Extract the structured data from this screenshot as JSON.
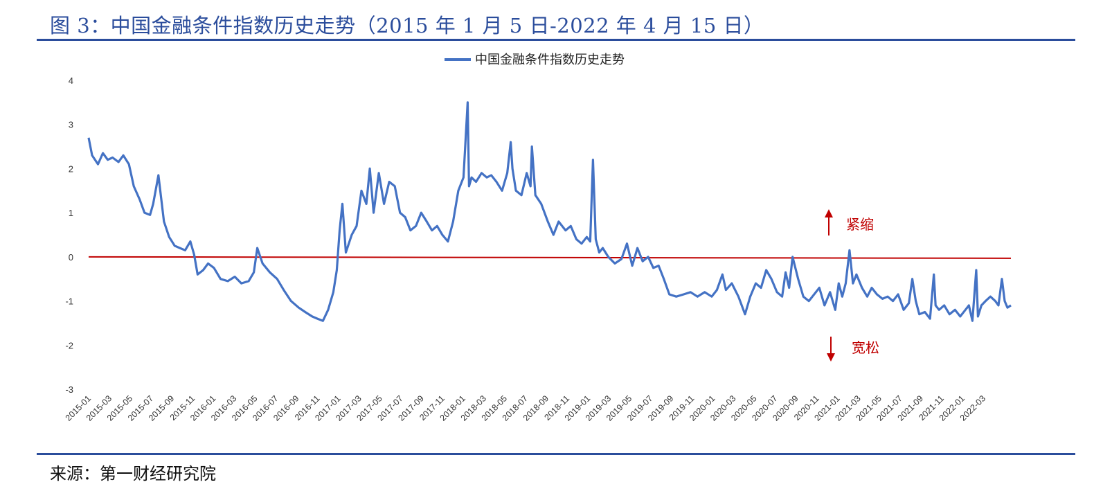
{
  "figure": {
    "title": "图 3：中国金融条件指数历史走势（2015 年 1 月 5 日-2022 年 4 月 15 日）",
    "source": "来源：第一财经研究院"
  },
  "colors": {
    "series": "#4472c4",
    "zero_line": "#c00000",
    "annotation": "#c00000",
    "rule": "#2b4d9c",
    "title": "#2b4d9c"
  },
  "chart_data": {
    "type": "line",
    "title": "",
    "xlabel": "",
    "ylabel": "",
    "ylim": [
      -3,
      4
    ],
    "yticks": [
      "4",
      "3",
      "2",
      "1",
      "0",
      "-1",
      "-2",
      "-3"
    ],
    "grid": false,
    "legend_position": "top-center",
    "x_tick_labels": [
      "2015-01",
      "2015-03",
      "2015-05",
      "2015-07",
      "2015-09",
      "2015-11",
      "2016-01",
      "2016-03",
      "2016-05",
      "2016-07",
      "2016-09",
      "2016-11",
      "2017-01",
      "2017-03",
      "2017-05",
      "2017-07",
      "2017-09",
      "2017-11",
      "2018-01",
      "2018-03",
      "2018-05",
      "2018-07",
      "2018-09",
      "2018-11",
      "2019-01",
      "2019-03",
      "2019-05",
      "2019-07",
      "2019-09",
      "2019-11",
      "2020-01",
      "2020-03",
      "2020-05",
      "2020-07",
      "2020-09",
      "2020-11",
      "2021-01",
      "2021-03",
      "2021-05",
      "2021-07",
      "2021-09",
      "2021-11",
      "2022-01",
      "2022-03"
    ],
    "series": [
      {
        "name": "中国金融条件指数历史走势",
        "x": [
          "2015-01-05",
          "2015-01-15",
          "2015-02-01",
          "2015-02-15",
          "2015-03-01",
          "2015-03-15",
          "2015-04-01",
          "2015-04-15",
          "2015-05-01",
          "2015-05-15",
          "2015-06-01",
          "2015-06-15",
          "2015-07-01",
          "2015-07-10",
          "2015-07-25",
          "2015-08-10",
          "2015-08-25",
          "2015-09-10",
          "2015-09-25",
          "2015-10-10",
          "2015-10-25",
          "2015-11-05",
          "2015-11-15",
          "2015-12-01",
          "2015-12-15",
          "2016-01-01",
          "2016-01-20",
          "2016-02-10",
          "2016-03-01",
          "2016-03-20",
          "2016-04-10",
          "2016-04-25",
          "2016-05-05",
          "2016-05-20",
          "2016-06-10",
          "2016-07-01",
          "2016-07-20",
          "2016-08-10",
          "2016-09-01",
          "2016-09-20",
          "2016-10-10",
          "2016-10-25",
          "2016-11-10",
          "2016-11-25",
          "2016-12-10",
          "2016-12-20",
          "2016-12-28",
          "2017-01-05",
          "2017-01-15",
          "2017-02-01",
          "2017-02-15",
          "2017-03-01",
          "2017-03-15",
          "2017-03-25",
          "2017-04-05",
          "2017-04-20",
          "2017-05-05",
          "2017-05-20",
          "2017-06-05",
          "2017-06-20",
          "2017-07-05",
          "2017-07-20",
          "2017-08-05",
          "2017-08-20",
          "2017-09-05",
          "2017-09-20",
          "2017-10-05",
          "2017-10-20",
          "2017-11-05",
          "2017-11-20",
          "2017-12-05",
          "2017-12-20",
          "2018-01-01",
          "2018-01-05",
          "2018-01-12",
          "2018-01-25",
          "2018-02-10",
          "2018-02-25",
          "2018-03-10",
          "2018-03-25",
          "2018-04-10",
          "2018-04-25",
          "2018-05-05",
          "2018-05-10",
          "2018-05-20",
          "2018-06-05",
          "2018-06-20",
          "2018-07-01",
          "2018-07-05",
          "2018-07-15",
          "2018-08-01",
          "2018-08-20",
          "2018-09-05",
          "2018-09-20",
          "2018-10-10",
          "2018-10-25",
          "2018-11-10",
          "2018-11-25",
          "2018-12-10",
          "2018-12-20",
          "2018-12-28",
          "2019-01-05",
          "2019-01-15",
          "2019-01-25",
          "2019-02-10",
          "2019-03-01",
          "2019-03-20",
          "2019-04-05",
          "2019-04-20",
          "2019-05-05",
          "2019-05-20",
          "2019-06-05",
          "2019-06-20",
          "2019-07-05",
          "2019-07-20",
          "2019-08-05",
          "2019-08-25",
          "2019-09-15",
          "2019-10-05",
          "2019-10-25",
          "2019-11-15",
          "2019-12-05",
          "2019-12-20",
          "2020-01-05",
          "2020-01-15",
          "2020-02-01",
          "2020-02-20",
          "2020-03-10",
          "2020-03-25",
          "2020-04-10",
          "2020-04-25",
          "2020-05-10",
          "2020-05-25",
          "2020-06-10",
          "2020-06-25",
          "2020-07-05",
          "2020-07-15",
          "2020-07-25",
          "2020-08-10",
          "2020-08-25",
          "2020-09-10",
          "2020-09-25",
          "2020-10-10",
          "2020-10-25",
          "2020-11-10",
          "2020-11-25",
          "2020-12-05",
          "2020-12-15",
          "2020-12-25",
          "2021-01-05",
          "2021-01-15",
          "2021-01-25",
          "2021-02-10",
          "2021-02-25",
          "2021-03-10",
          "2021-03-25",
          "2021-04-10",
          "2021-04-25",
          "2021-05-10",
          "2021-05-25",
          "2021-06-10",
          "2021-06-25",
          "2021-07-05",
          "2021-07-15",
          "2021-07-25",
          "2021-08-10",
          "2021-08-25",
          "2021-09-05",
          "2021-09-10",
          "2021-09-20",
          "2021-10-05",
          "2021-10-20",
          "2021-11-05",
          "2021-11-20",
          "2021-12-05",
          "2021-12-15",
          "2021-12-25",
          "2022-01-05",
          "2022-01-10",
          "2022-01-20",
          "2022-02-01",
          "2022-02-15",
          "2022-03-01",
          "2022-03-10",
          "2022-03-20",
          "2022-03-28",
          "2022-04-05",
          "2022-04-15"
        ],
        "y": [
          2.7,
          2.3,
          2.1,
          2.35,
          2.2,
          2.25,
          2.15,
          2.3,
          2.1,
          1.6,
          1.3,
          1.0,
          0.95,
          1.2,
          1.85,
          0.8,
          0.45,
          0.25,
          0.2,
          0.15,
          0.35,
          0.05,
          -0.4,
          -0.3,
          -0.15,
          -0.25,
          -0.5,
          -0.55,
          -0.45,
          -0.6,
          -0.55,
          -0.35,
          0.2,
          -0.15,
          -0.35,
          -0.5,
          -0.75,
          -1.0,
          -1.15,
          -1.25,
          -1.35,
          -1.4,
          -1.45,
          -1.2,
          -0.8,
          -0.3,
          0.6,
          1.2,
          0.1,
          0.5,
          0.7,
          1.5,
          1.2,
          2.0,
          1.0,
          1.9,
          1.2,
          1.7,
          1.6,
          1.0,
          0.9,
          0.6,
          0.7,
          1.0,
          0.8,
          0.6,
          0.7,
          0.5,
          0.35,
          0.8,
          1.5,
          1.8,
          3.5,
          1.6,
          1.8,
          1.7,
          1.9,
          1.8,
          1.85,
          1.7,
          1.5,
          1.9,
          2.6,
          2.0,
          1.5,
          1.4,
          1.9,
          1.6,
          2.5,
          1.4,
          1.2,
          0.8,
          0.5,
          0.8,
          0.6,
          0.7,
          0.4,
          0.3,
          0.45,
          0.35,
          2.2,
          0.4,
          0.1,
          0.2,
          0.0,
          -0.15,
          -0.05,
          0.3,
          -0.2,
          0.2,
          -0.1,
          0.0,
          -0.25,
          -0.2,
          -0.5,
          -0.85,
          -0.9,
          -0.85,
          -0.8,
          -0.9,
          -0.8,
          -0.9,
          -0.75,
          -0.4,
          -0.75,
          -0.6,
          -0.9,
          -1.3,
          -0.9,
          -0.6,
          -0.7,
          -0.3,
          -0.5,
          -0.8,
          -0.9,
          -0.35,
          -0.7,
          0.0,
          -0.5,
          -0.9,
          -1.0,
          -0.85,
          -0.7,
          -1.1,
          -0.8,
          -1.2,
          -0.6,
          -0.9,
          -0.6,
          0.15,
          -0.6,
          -0.4,
          -0.7,
          -0.9,
          -0.7,
          -0.85,
          -0.95,
          -0.9,
          -1.0,
          -0.85,
          -1.2,
          -1.05,
          -0.5,
          -1.0,
          -1.3,
          -1.25,
          -1.4,
          -0.4,
          -1.1,
          -1.2,
          -1.1,
          -1.3,
          -1.2,
          -1.35,
          -1.2,
          -1.1,
          -1.45,
          -0.3,
          -1.35,
          -1.1,
          -1.0,
          -0.9,
          -1.0,
          -1.1,
          -0.5,
          -1.0,
          -1.15,
          -1.1
        ]
      }
    ],
    "reference_line": {
      "y": 0
    },
    "annotations": [
      {
        "text": "紧缩",
        "direction": "up"
      },
      {
        "text": "宽松",
        "direction": "down"
      }
    ]
  }
}
